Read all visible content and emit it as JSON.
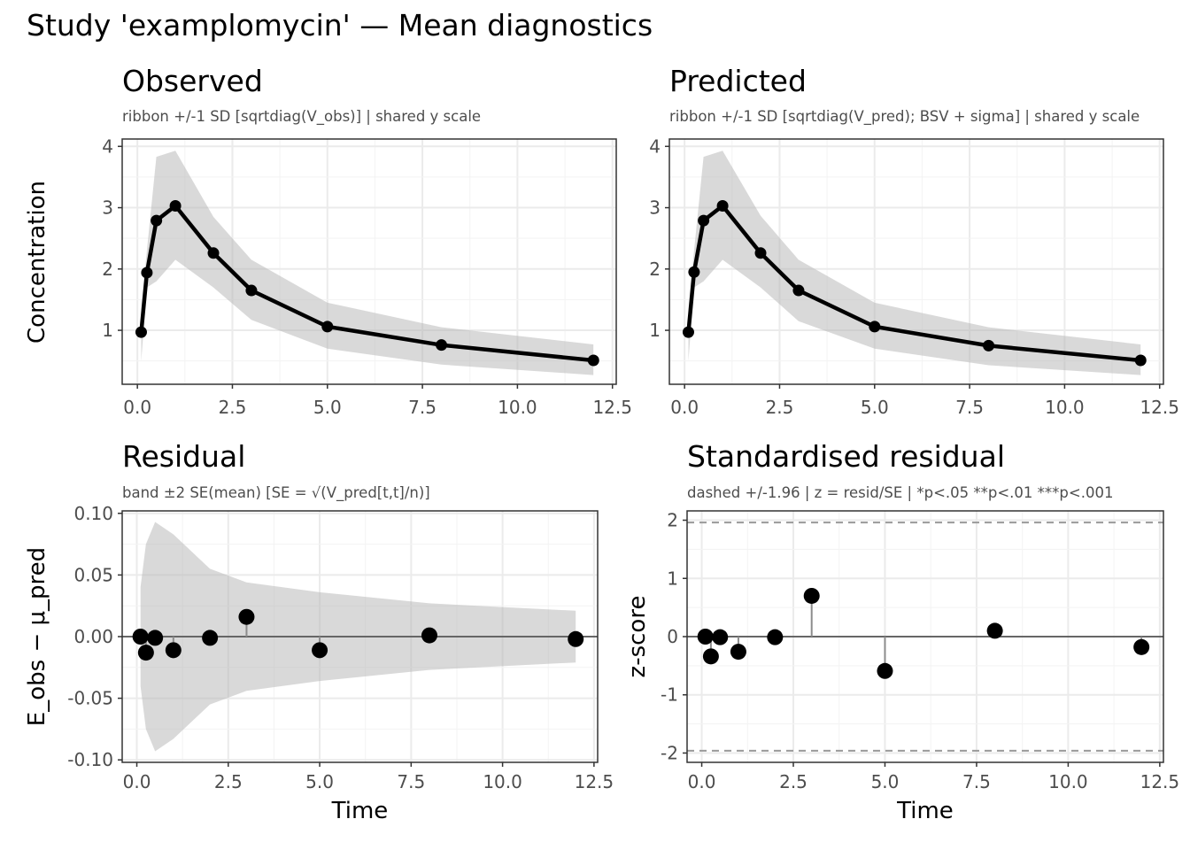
{
  "figure": {
    "title": "Study 'examplomycin'  —  Mean diagnostics"
  },
  "chart_data": [
    {
      "type": "line",
      "title": "Observed",
      "subtitle": "ribbon +/-1 SD  [sqrtdiag(V_obs)]  |  shared y scale",
      "xlabel": "",
      "ylabel": "Concentration",
      "xlim": [
        -0.4,
        12.6
      ],
      "ylim": [
        0.12,
        4.12
      ],
      "x_ticks": [
        0,
        2.5,
        5,
        7.5,
        10,
        12.5
      ],
      "x_tick_labels": [
        "0.0",
        "2.5",
        "5.0",
        "7.5",
        "10.0",
        "12.5"
      ],
      "y_ticks": [
        1,
        2,
        3,
        4
      ],
      "y_tick_labels": [
        "1",
        "2",
        "3",
        "4"
      ],
      "grid": true,
      "x": [
        0.1,
        0.25,
        0.5,
        1,
        2,
        3,
        5,
        8,
        12
      ],
      "y": [
        0.97,
        1.94,
        2.79,
        3.03,
        2.26,
        1.65,
        1.06,
        0.76,
        0.51
      ],
      "band_lower": [
        0.5,
        1.7,
        1.8,
        2.15,
        1.7,
        1.17,
        0.7,
        0.44,
        0.27
      ],
      "band_upper": [
        1.35,
        2.3,
        3.83,
        3.93,
        2.85,
        2.15,
        1.45,
        1.05,
        0.77
      ]
    },
    {
      "type": "line",
      "title": "Predicted",
      "subtitle": "ribbon +/-1 SD  [sqrtdiag(V_pred);  BSV + sigma]  |  shared y scale",
      "xlabel": "",
      "ylabel": "",
      "xlim": [
        -0.4,
        12.6
      ],
      "ylim": [
        0.12,
        4.12
      ],
      "x_ticks": [
        0,
        2.5,
        5,
        7.5,
        10,
        12.5
      ],
      "x_tick_labels": [
        "0.0",
        "2.5",
        "5.0",
        "7.5",
        "10.0",
        "12.5"
      ],
      "y_ticks": [
        1,
        2,
        3,
        4
      ],
      "y_tick_labels": [
        "1",
        "2",
        "3",
        "4"
      ],
      "grid": true,
      "x": [
        0.1,
        0.25,
        0.5,
        1,
        2,
        3,
        5,
        8,
        12
      ],
      "y": [
        0.97,
        1.95,
        2.79,
        3.03,
        2.26,
        1.65,
        1.06,
        0.75,
        0.51
      ],
      "band_lower": [
        0.5,
        1.7,
        1.8,
        2.15,
        1.7,
        1.15,
        0.7,
        0.43,
        0.27
      ],
      "band_upper": [
        1.35,
        2.3,
        3.83,
        3.93,
        2.87,
        2.15,
        1.45,
        1.05,
        0.77
      ]
    },
    {
      "type": "scatter",
      "title": "Residual",
      "subtitle": "band ±2 SE(mean)  [SE = √(V_pred[t,t]/n)]",
      "xlabel": "Time",
      "ylabel": "E_obs − μ_pred",
      "xlim": [
        -0.4,
        12.6
      ],
      "ylim": [
        -0.102,
        0.102
      ],
      "x_ticks": [
        0,
        2.5,
        5,
        7.5,
        10,
        12.5
      ],
      "x_tick_labels": [
        "0.0",
        "2.5",
        "5.0",
        "7.5",
        "10.0",
        "12.5"
      ],
      "y_ticks": [
        -0.1,
        -0.05,
        0,
        0.05,
        0.1
      ],
      "y_tick_labels": [
        "-0.10",
        "-0.05",
        "0.00",
        "0.05",
        "0.10"
      ],
      "grid": true,
      "reference_line": 0,
      "x": [
        0.1,
        0.25,
        0.5,
        1,
        2,
        3,
        5,
        8,
        12
      ],
      "y": [
        0.0,
        -0.013,
        -0.001,
        -0.011,
        -0.001,
        0.016,
        -0.011,
        0.001,
        -0.002
      ],
      "band_lower": [
        -0.04,
        -0.075,
        -0.093,
        -0.083,
        -0.055,
        -0.044,
        -0.036,
        -0.027,
        -0.021
      ],
      "band_upper": [
        0.04,
        0.075,
        0.093,
        0.083,
        0.055,
        0.044,
        0.036,
        0.027,
        0.021
      ]
    },
    {
      "type": "scatter",
      "title": "Standardised residual",
      "subtitle": "dashed +/-1.96  |  z = resid/SE  |  *p<.05 **p<.01 ***p<.001",
      "xlabel": "Time",
      "ylabel": "z-score",
      "xlim": [
        -0.4,
        12.6
      ],
      "ylim": [
        -2.16,
        2.16
      ],
      "x_ticks": [
        0,
        2.5,
        5,
        7.5,
        10,
        12.5
      ],
      "x_tick_labels": [
        "0.0",
        "2.5",
        "5.0",
        "7.5",
        "10.0",
        "12.5"
      ],
      "y_ticks": [
        -2,
        -1,
        0,
        1,
        2
      ],
      "y_tick_labels": [
        "-2",
        "-1",
        "0",
        "1",
        "2"
      ],
      "grid": true,
      "reference_line": 0,
      "dashed_lines": [
        -1.96,
        1.96
      ],
      "x": [
        0.1,
        0.25,
        0.5,
        1,
        2,
        3,
        5,
        8,
        12
      ],
      "y": [
        0.0,
        -0.34,
        -0.01,
        -0.26,
        -0.01,
        0.7,
        -0.59,
        0.1,
        -0.18
      ]
    }
  ]
}
